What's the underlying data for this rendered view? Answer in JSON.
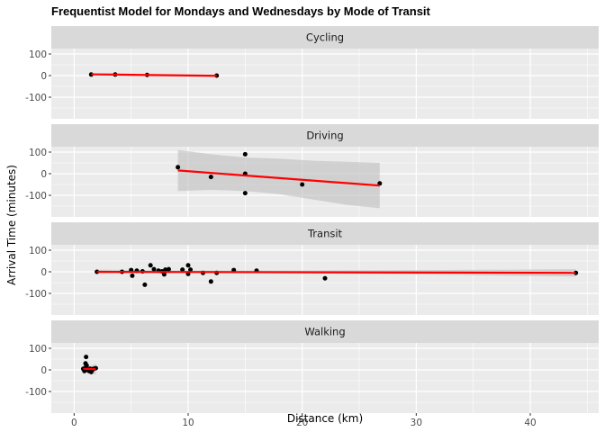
{
  "chart_data": {
    "type": "scatter",
    "title": "Frequentist Model for Mondays and Wednesdays by Mode of Transit",
    "xlabel": "Distance (km)",
    "ylabel": "Arrival Time (minutes)",
    "xlim": [
      -2,
      46
    ],
    "ylim": [
      -200,
      125
    ],
    "x_ticks": [
      0,
      10,
      20,
      30,
      40
    ],
    "y_ticks": [
      100,
      0,
      -100
    ],
    "grid": true,
    "colors": {
      "point": "#000000",
      "fit": "#ff0000",
      "band": "#bebebe",
      "panel": "#ebebeb",
      "strip": "#d9d9d9"
    },
    "panels": [
      {
        "name": "Cycling",
        "points": [
          [
            1.5,
            5
          ],
          [
            3.6,
            5
          ],
          [
            6.4,
            3
          ],
          [
            12.5,
            0
          ]
        ],
        "fit": [
          [
            1.5,
            6
          ],
          [
            12.5,
            -1
          ]
        ],
        "band": null
      },
      {
        "name": "Driving",
        "points": [
          [
            9.1,
            30
          ],
          [
            12,
            -15
          ],
          [
            15,
            90
          ],
          [
            15,
            0
          ],
          [
            15,
            -90
          ],
          [
            20,
            -50
          ],
          [
            26.8,
            -45
          ]
        ],
        "fit": [
          [
            9.1,
            15
          ],
          [
            26.8,
            -55
          ]
        ],
        "band": {
          "x": [
            9.1,
            12,
            15,
            18,
            21,
            24,
            26.8
          ],
          "upper": [
            110,
            90,
            75,
            70,
            60,
            55,
            50
          ],
          "lower": [
            -80,
            -75,
            -80,
            -95,
            -120,
            -145,
            -160
          ]
        }
      },
      {
        "name": "Transit",
        "points": [
          [
            2,
            0
          ],
          [
            4.2,
            0
          ],
          [
            5,
            8
          ],
          [
            5.1,
            -18
          ],
          [
            5.5,
            5
          ],
          [
            6,
            2
          ],
          [
            6.2,
            -60
          ],
          [
            6.7,
            30
          ],
          [
            7,
            12
          ],
          [
            7.4,
            5
          ],
          [
            7.7,
            2
          ],
          [
            7.9,
            -12
          ],
          [
            8,
            10
          ],
          [
            8.3,
            12
          ],
          [
            9.5,
            10
          ],
          [
            10,
            30
          ],
          [
            10,
            -10
          ],
          [
            10.2,
            10
          ],
          [
            11.3,
            -5
          ],
          [
            12,
            -45
          ],
          [
            12.5,
            -5
          ],
          [
            14,
            8
          ],
          [
            16,
            5
          ],
          [
            22,
            -30
          ],
          [
            44,
            -5
          ]
        ],
        "fit": [
          [
            2,
            0
          ],
          [
            44,
            -5
          ]
        ],
        "band": {
          "x": [
            2,
            10,
            20,
            30,
            38,
            44
          ],
          "upper": [
            10,
            6,
            6,
            8,
            10,
            12
          ],
          "lower": [
            -10,
            -6,
            -7,
            -12,
            -18,
            -22
          ]
        }
      },
      {
        "name": "Walking",
        "points": [
          [
            0.8,
            5
          ],
          [
            0.9,
            -5
          ],
          [
            1.0,
            10
          ],
          [
            1.0,
            30
          ],
          [
            1.05,
            60
          ],
          [
            1.1,
            20
          ],
          [
            1.2,
            0
          ],
          [
            1.3,
            -5
          ],
          [
            1.4,
            5
          ],
          [
            1.5,
            -10
          ],
          [
            1.6,
            0
          ],
          [
            1.7,
            5
          ],
          [
            1.9,
            8
          ]
        ],
        "fit": [
          [
            0.8,
            5
          ],
          [
            1.9,
            3
          ]
        ],
        "band": {
          "x": [
            0.8,
            1.3,
            1.9
          ],
          "upper": [
            30,
            15,
            28
          ],
          "lower": [
            -20,
            -8,
            -22
          ]
        }
      }
    ]
  }
}
